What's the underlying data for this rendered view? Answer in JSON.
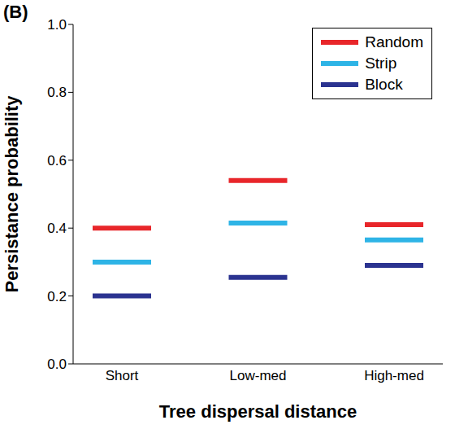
{
  "chart_data": {
    "type": "scatter",
    "title": "(B)",
    "x_label": "Tree dispersal distance",
    "y_label": "Persistance probability",
    "categories": [
      "Short",
      "Low-med",
      "High-med"
    ],
    "series": [
      {
        "name": "Random",
        "color": "#e8262a",
        "values": [
          0.4,
          0.54,
          0.41
        ]
      },
      {
        "name": "Strip",
        "color": "#2eb4e6",
        "values": [
          0.3,
          0.415,
          0.365
        ]
      },
      {
        "name": "Block",
        "color": "#2b3390",
        "values": [
          0.2,
          0.255,
          0.29
        ]
      }
    ],
    "ylim": [
      0,
      1
    ],
    "yticks": [
      {
        "value": 0,
        "label": "0.0"
      },
      0.2,
      0.4,
      0.6,
      0.8,
      {
        "value": 1,
        "label": "1.0"
      }
    ],
    "marker": "dash",
    "grid": false,
    "legend": "top right"
  }
}
